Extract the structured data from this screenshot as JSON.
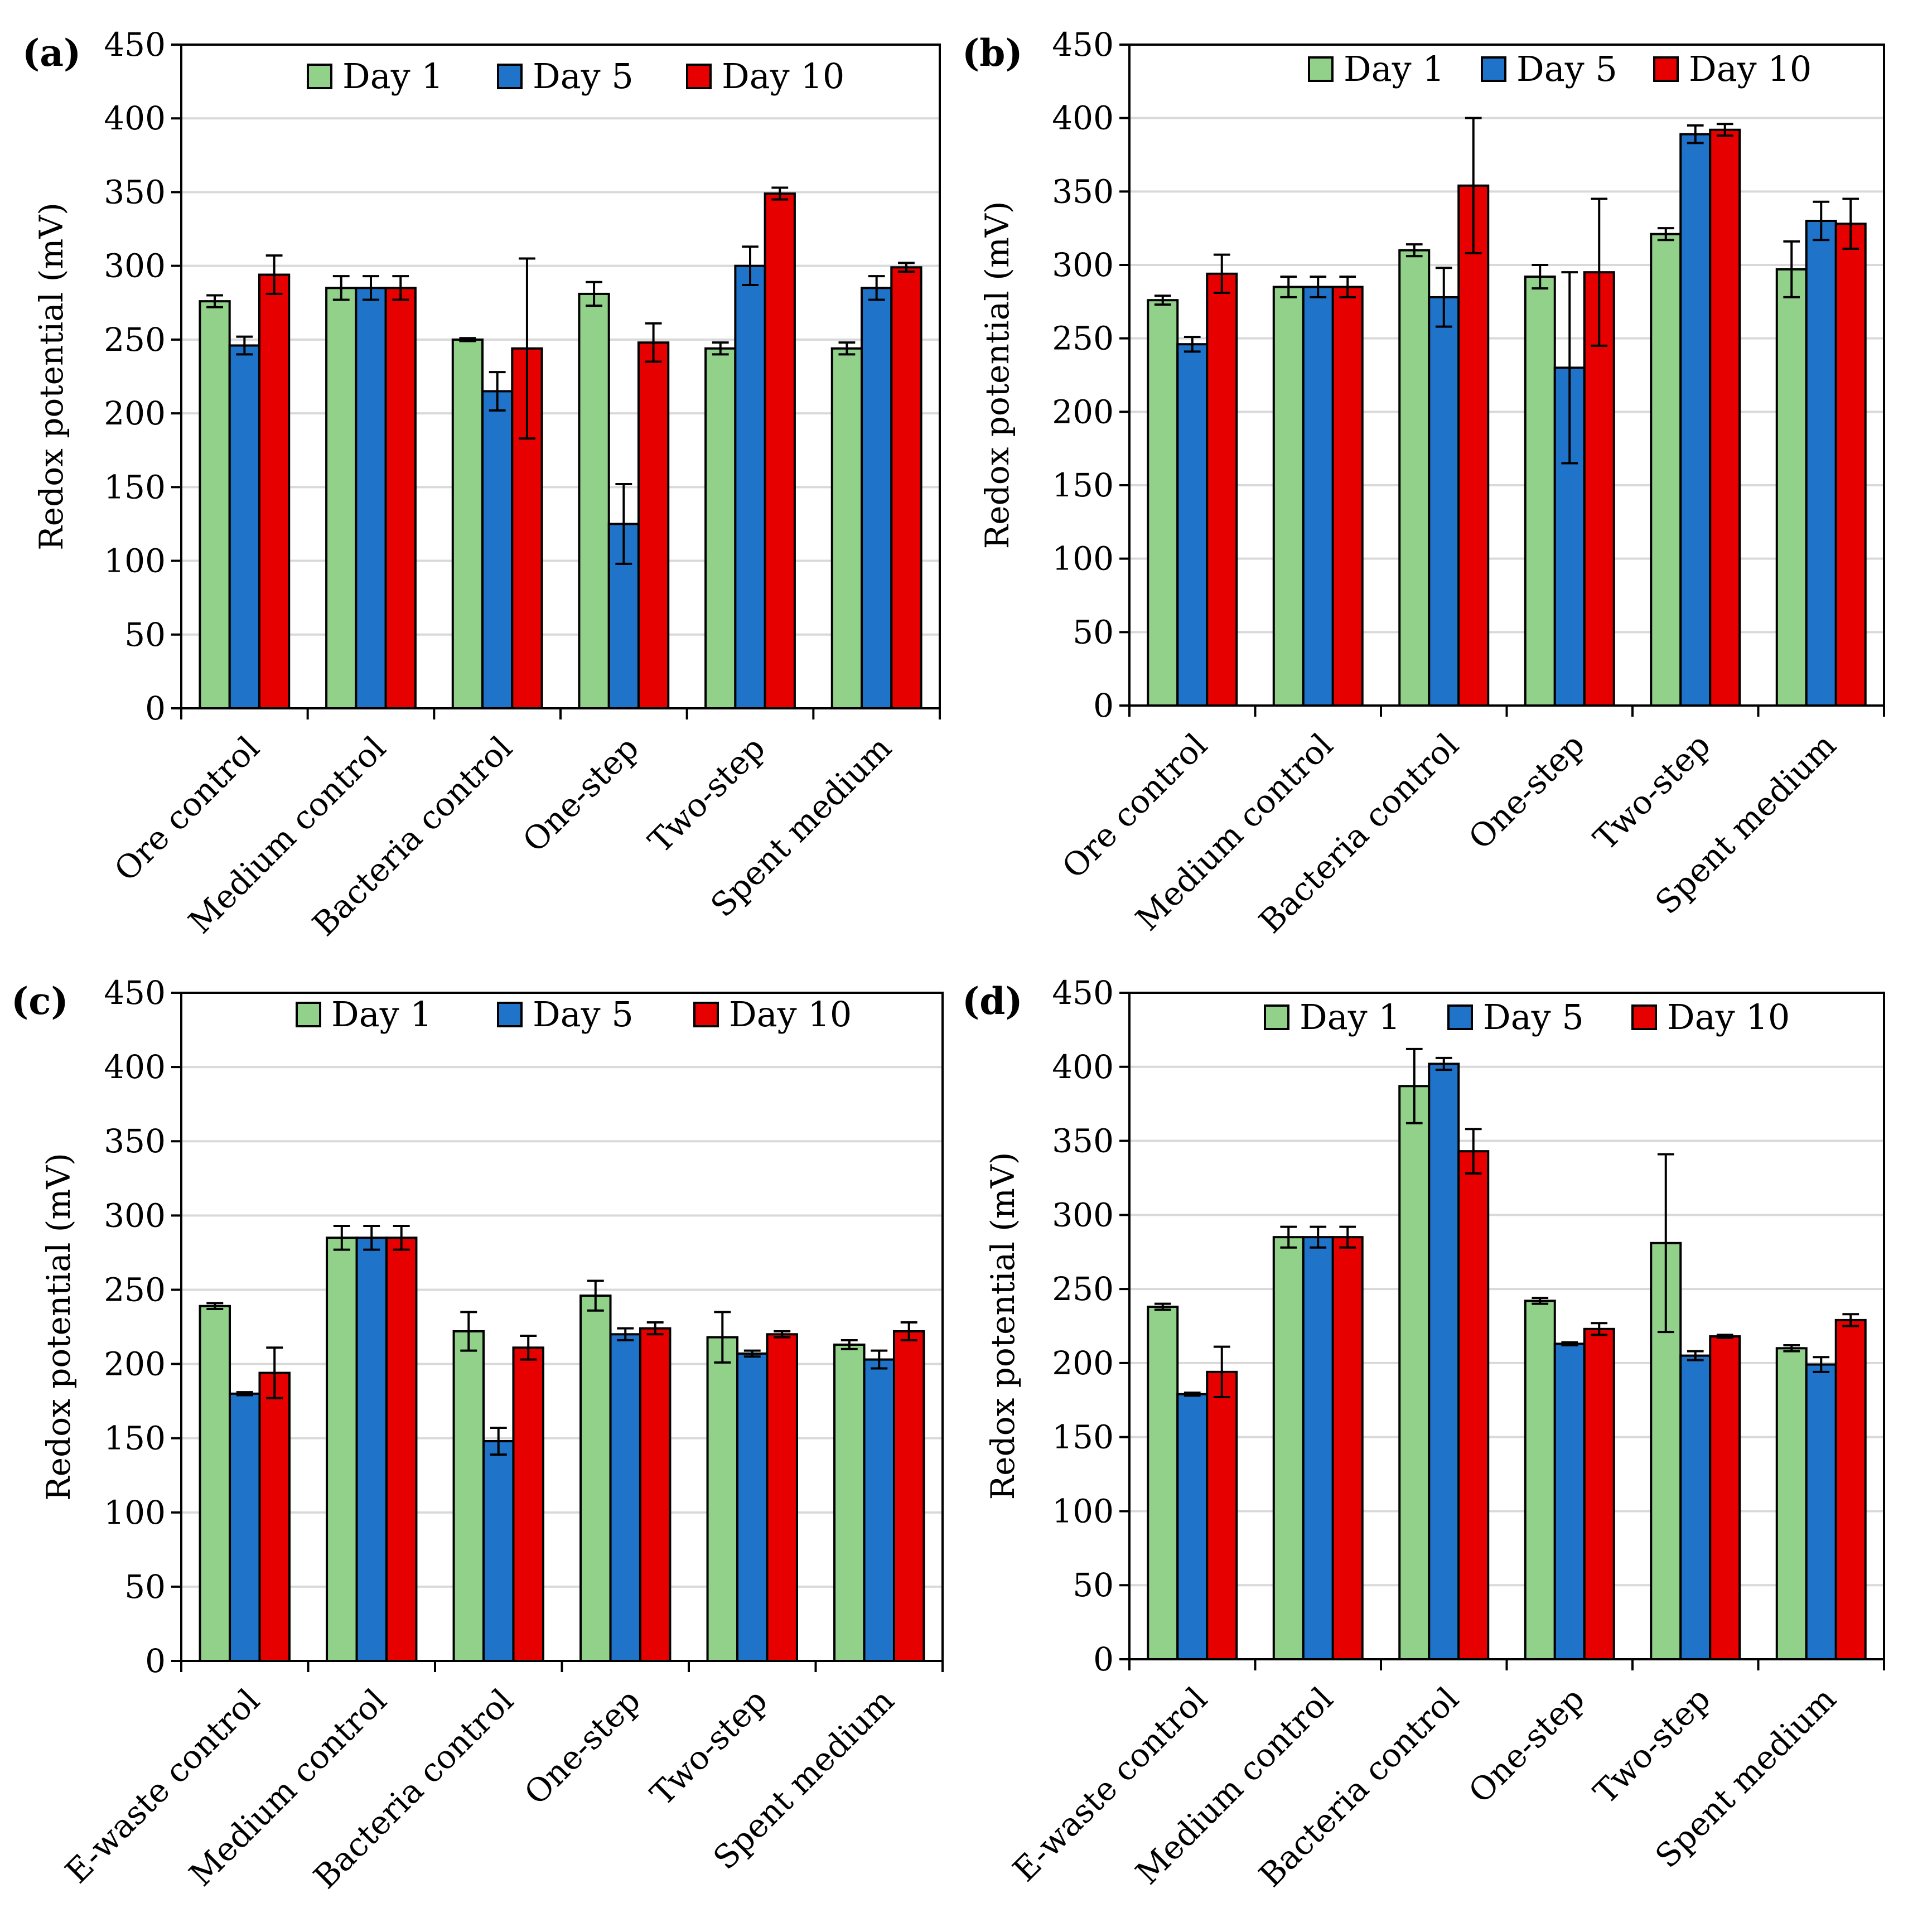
{
  "colors": {
    "day1": "#92d18a",
    "day5": "#1f73c9",
    "day10": "#e60000"
  },
  "chart_data": [
    {
      "type": "bar",
      "panel_label": "(a)",
      "ylabel": "Redox potential (mV)",
      "ylim": [
        0,
        450
      ],
      "yticks": [
        "0",
        "50",
        "100",
        "150",
        "200",
        "250",
        "300",
        "350",
        "400",
        "450"
      ],
      "grid": true,
      "legend_position": "top",
      "categories": [
        "Ore control",
        "Medium control",
        "Bacteria control",
        "One-step",
        "Two-step",
        "Spent medium"
      ],
      "series": [
        {
          "name": "Day 1",
          "color_key": "day1",
          "values": [
            276,
            285,
            250,
            281,
            244,
            244
          ],
          "errors": [
            4,
            8,
            1,
            8,
            4,
            4
          ]
        },
        {
          "name": "Day 5",
          "color_key": "day5",
          "values": [
            246,
            285,
            215,
            125,
            300,
            285
          ],
          "errors": [
            6,
            8,
            13,
            27,
            13,
            8
          ]
        },
        {
          "name": "Day 10",
          "color_key": "day10",
          "values": [
            294,
            285,
            244,
            248,
            349,
            299
          ],
          "errors": [
            13,
            8,
            61,
            13,
            4,
            3
          ]
        }
      ]
    },
    {
      "type": "bar",
      "panel_label": "(b)",
      "ylabel": "Redox potential (mV)",
      "ylim": [
        0,
        450
      ],
      "yticks": [
        "0",
        "50",
        "100",
        "150",
        "200",
        "250",
        "300",
        "350",
        "400",
        "450"
      ],
      "grid": true,
      "legend_position": "top",
      "categories": [
        "Ore control",
        "Medium control",
        "Bacteria control",
        "One-step",
        "Two-step",
        "Spent medium"
      ],
      "series": [
        {
          "name": "Day 1",
          "color_key": "day1",
          "values": [
            276,
            285,
            310,
            292,
            321,
            297
          ],
          "errors": [
            3,
            7,
            4,
            8,
            4,
            19
          ]
        },
        {
          "name": "Day 5",
          "color_key": "day5",
          "values": [
            246,
            285,
            278,
            230,
            389,
            330
          ],
          "errors": [
            5,
            7,
            20,
            65,
            6,
            13
          ]
        },
        {
          "name": "Day 10",
          "color_key": "day10",
          "values": [
            294,
            285,
            354,
            295,
            392,
            328
          ],
          "errors": [
            13,
            7,
            46,
            50,
            4,
            17
          ]
        }
      ]
    },
    {
      "type": "bar",
      "panel_label": "(c)",
      "ylabel": "Redox potential (mV)",
      "ylim": [
        0,
        450
      ],
      "yticks": [
        "0",
        "50",
        "100",
        "150",
        "200",
        "250",
        "300",
        "350",
        "400",
        "450"
      ],
      "grid": true,
      "legend_position": "top",
      "categories": [
        "E-waste control",
        "Medium control",
        "Bacteria control",
        "One-step",
        "Two-step",
        "Spent medium"
      ],
      "series": [
        {
          "name": "Day 1",
          "color_key": "day1",
          "values": [
            239,
            285,
            222,
            246,
            218,
            213
          ],
          "errors": [
            2,
            8,
            13,
            10,
            17,
            3
          ]
        },
        {
          "name": "Day 5",
          "color_key": "day5",
          "values": [
            180,
            285,
            148,
            220,
            207,
            203
          ],
          "errors": [
            1,
            8,
            9,
            4,
            2,
            6
          ]
        },
        {
          "name": "Day 10",
          "color_key": "day10",
          "values": [
            194,
            285,
            211,
            224,
            220,
            222
          ],
          "errors": [
            17,
            8,
            8,
            4,
            2,
            6
          ]
        }
      ]
    },
    {
      "type": "bar",
      "panel_label": "(d)",
      "ylabel": "Redox potential (mV)",
      "ylim": [
        0,
        450
      ],
      "yticks": [
        "0",
        "50",
        "100",
        "150",
        "200",
        "250",
        "300",
        "350",
        "400",
        "450"
      ],
      "grid": true,
      "legend_position": "top",
      "categories": [
        "E-waste control",
        "Medium control",
        "Bacteria control",
        "One-step",
        "Two-step",
        "Spent medium"
      ],
      "series": [
        {
          "name": "Day 1",
          "color_key": "day1",
          "values": [
            238,
            285,
            387,
            242,
            281,
            210
          ],
          "errors": [
            2,
            7,
            25,
            2,
            60,
            2
          ]
        },
        {
          "name": "Day 5",
          "color_key": "day5",
          "values": [
            179,
            285,
            402,
            213,
            205,
            199
          ],
          "errors": [
            1,
            7,
            4,
            1,
            3,
            5
          ]
        },
        {
          "name": "Day 10",
          "color_key": "day10",
          "values": [
            194,
            285,
            343,
            223,
            218,
            229
          ],
          "errors": [
            17,
            7,
            15,
            4,
            1,
            4
          ]
        }
      ]
    }
  ]
}
